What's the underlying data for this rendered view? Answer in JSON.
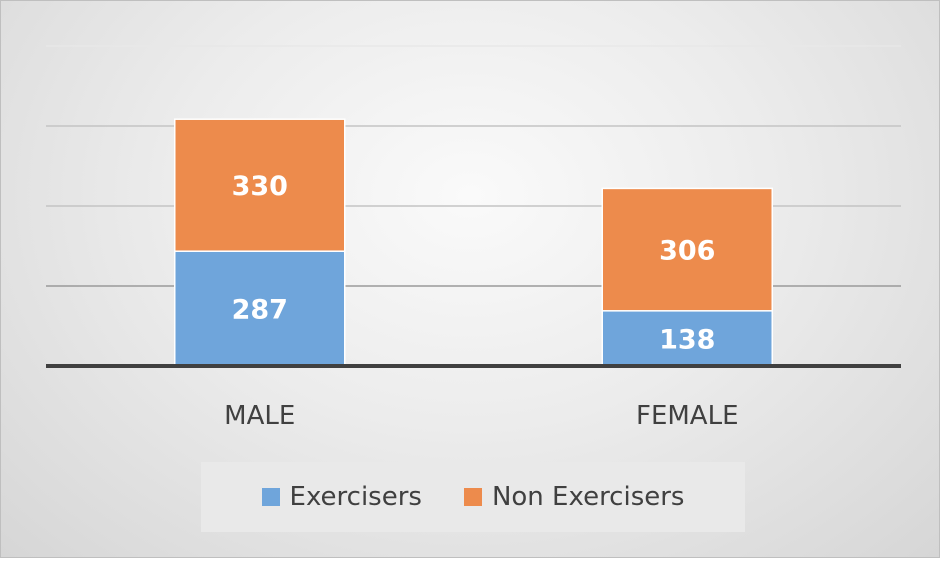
{
  "chart_data": {
    "type": "bar",
    "stacked": true,
    "categories": [
      "MALE",
      "FEMALE"
    ],
    "series": [
      {
        "name": "Exercisers",
        "values": [
          287,
          138
        ],
        "color": "#6fa5db"
      },
      {
        "name": "Non Exercisers",
        "values": [
          330,
          306
        ],
        "color": "#ed8b4c"
      }
    ],
    "ylim": [
      0,
      800
    ],
    "grid": true,
    "legend_position": "bottom"
  }
}
